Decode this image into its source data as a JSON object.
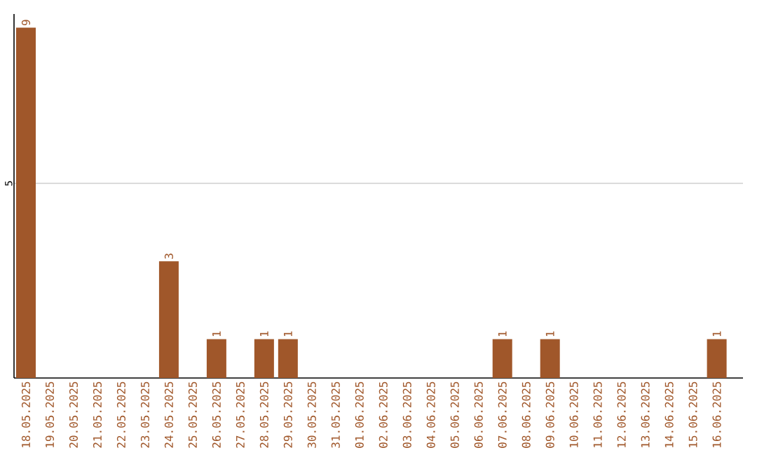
{
  "chart_data": {
    "type": "bar",
    "categories": [
      "18.05.2025",
      "19.05.2025",
      "20.05.2025",
      "21.05.2025",
      "22.05.2025",
      "23.05.2025",
      "24.05.2025",
      "25.05.2025",
      "26.05.2025",
      "27.05.2025",
      "28.05.2025",
      "29.05.2025",
      "30.05.2025",
      "31.05.2025",
      "01.06.2025",
      "02.06.2025",
      "03.06.2025",
      "04.06.2025",
      "05.06.2025",
      "06.06.2025",
      "07.06.2025",
      "08.06.2025",
      "09.06.2025",
      "10.06.2025",
      "11.06.2025",
      "12.06.2025",
      "13.06.2025",
      "14.06.2025",
      "15.06.2025",
      "16.06.2025"
    ],
    "values": [
      9,
      0,
      0,
      0,
      0,
      0,
      3,
      0,
      1,
      0,
      1,
      1,
      0,
      0,
      0,
      0,
      0,
      0,
      0,
      0,
      1,
      0,
      1,
      0,
      0,
      0,
      0,
      0,
      0,
      1
    ],
    "value_labels": [
      "9",
      null,
      null,
      null,
      null,
      null,
      "3",
      null,
      "1",
      null,
      "1",
      "1",
      null,
      null,
      null,
      null,
      null,
      null,
      null,
      null,
      "1",
      null,
      "1",
      null,
      null,
      null,
      null,
      null,
      null,
      "1"
    ],
    "color": "#a0572a",
    "ylim": [
      0,
      9.35
    ],
    "yticks": [
      5
    ],
    "grid": "y"
  }
}
